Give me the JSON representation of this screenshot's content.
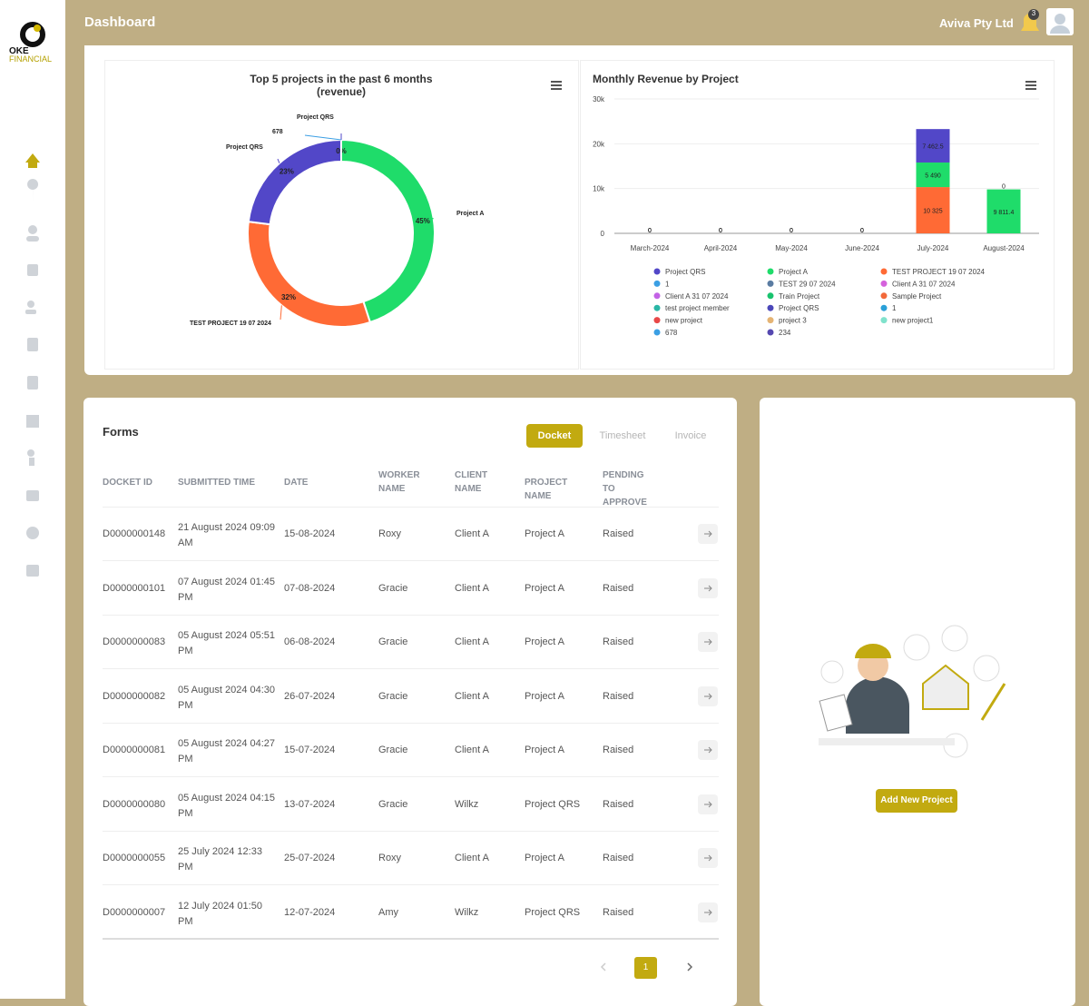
{
  "header": {
    "title": "Dashboard",
    "company": "Aviva Pty Ltd",
    "notifications": 3
  },
  "logo": {
    "line1": "OKE",
    "line2": "FINANCIAL"
  },
  "donut_chart": {
    "type": "pie",
    "title": "Top 5 projects in the past 6 months (revenue)",
    "labels": [
      "Project A",
      "TEST PROJECT 19 07 2024",
      "Project QRS",
      "Project QRS",
      "678"
    ],
    "values": [
      45,
      32,
      23,
      0,
      0
    ],
    "value_labels": [
      "45%",
      "32%",
      "23%",
      "0%",
      null
    ],
    "colors": [
      "#1fdc6a",
      "#ff6a35",
      "#5247c8",
      "#5247c8",
      "#3b9fe4"
    ]
  },
  "revenue_chart": {
    "type": "bar",
    "stacked": true,
    "title": "Monthly Revenue by Project",
    "categories": [
      "March-2024",
      "April-2024",
      "May-2024",
      "June-2024",
      "July-2024",
      "August-2024"
    ],
    "ylim": [
      0,
      30000
    ],
    "yticks": [
      0,
      {
        "value": 10000,
        "label": "10k"
      },
      {
        "value": 20000,
        "label": "20k"
      },
      {
        "value": 30000,
        "label": "30k"
      }
    ],
    "grid": true,
    "series": [
      {
        "name": "Project QRS",
        "color": "#5247c8",
        "values": [
          0,
          0,
          0,
          0,
          7462.5,
          0
        ],
        "value_labels": [
          "0",
          "0",
          "0",
          "0",
          "7 462.5",
          "0"
        ]
      },
      {
        "name": "Project A",
        "color": "#1fdc6a",
        "values": [
          0,
          0,
          0,
          0,
          5490,
          9811.4
        ],
        "value_labels": [
          "0",
          "0",
          "0",
          "0",
          "5 490",
          "9 811.4"
        ]
      },
      {
        "name": "TEST PROJECT 19 07 2024",
        "color": "#ff6a35",
        "values": [
          0,
          0,
          0,
          0,
          10325,
          0
        ],
        "value_labels": [
          "0",
          "0",
          "0",
          "0",
          "10 325",
          "0"
        ]
      },
      {
        "name": "1",
        "color": "#3b9fe4"
      },
      {
        "name": "TEST 29 07 2024",
        "color": "#5a7ca2"
      },
      {
        "name": "Client A 31 07 2024",
        "color": "#d562dc"
      },
      {
        "name": "Client A 31 07 2024",
        "color": "#c362e6"
      },
      {
        "name": "Train Project",
        "color": "#19c36e"
      },
      {
        "name": "Sample Project",
        "color": "#f2693a"
      },
      {
        "name": "test project member",
        "color": "#2ab7a6"
      },
      {
        "name": "Project QRS",
        "color": "#4b47b9"
      },
      {
        "name": "1",
        "color": "#2aa0d8"
      },
      {
        "name": "new project",
        "color": "#e84848"
      },
      {
        "name": "project 3",
        "color": "#e5b474"
      },
      {
        "name": "new project1",
        "color": "#80e2cc"
      },
      {
        "name": "678",
        "color": "#3b9fe4"
      },
      {
        "name": "234",
        "color": "#5548b0"
      }
    ]
  },
  "forms": {
    "title": "Forms",
    "tabs": [
      "Docket",
      "Timesheet",
      "Invoice"
    ],
    "columns": [
      "DOCKET ID",
      "SUBMITTED TIME",
      "DATE",
      "WORKER NAME",
      "CLIENT NAME",
      "PROJECT NAME",
      "PENDING TO APPROVE"
    ],
    "rows": [
      [
        "D0000000148",
        "21 August 2024 09:09 AM",
        "15-08-2024",
        "Roxy",
        "Client A",
        "Project A",
        "Raised"
      ],
      [
        "D0000000101",
        "07 August 2024 01:45 PM",
        "07-08-2024",
        "Gracie",
        "Client A",
        "Project A",
        "Raised"
      ],
      [
        "D0000000083",
        "05 August 2024 05:51 PM",
        "06-08-2024",
        "Gracie",
        "Client A",
        "Project A",
        "Raised"
      ],
      [
        "D0000000082",
        "05 August 2024 04:30 PM",
        "26-07-2024",
        "Gracie",
        "Client A",
        "Project A",
        "Raised"
      ],
      [
        "D0000000081",
        "05 August 2024 04:27 PM",
        "15-07-2024",
        "Gracie",
        "Client A",
        "Project A",
        "Raised"
      ],
      [
        "D0000000080",
        "05 August 2024 04:15 PM",
        "13-07-2024",
        "Gracie",
        "Wilkz",
        "Project QRS",
        "Raised"
      ],
      [
        "D0000000055",
        "25 July 2024 12:33 PM",
        "25-07-2024",
        "Roxy",
        "Client A",
        "Project A",
        "Raised"
      ],
      [
        "D0000000007",
        "12 July 2024 01:50 PM",
        "12-07-2024",
        "Amy",
        "Wilkz",
        "Project QRS",
        "Raised"
      ]
    ],
    "page": 1
  },
  "project_panel": {
    "button": "Add New Project"
  }
}
